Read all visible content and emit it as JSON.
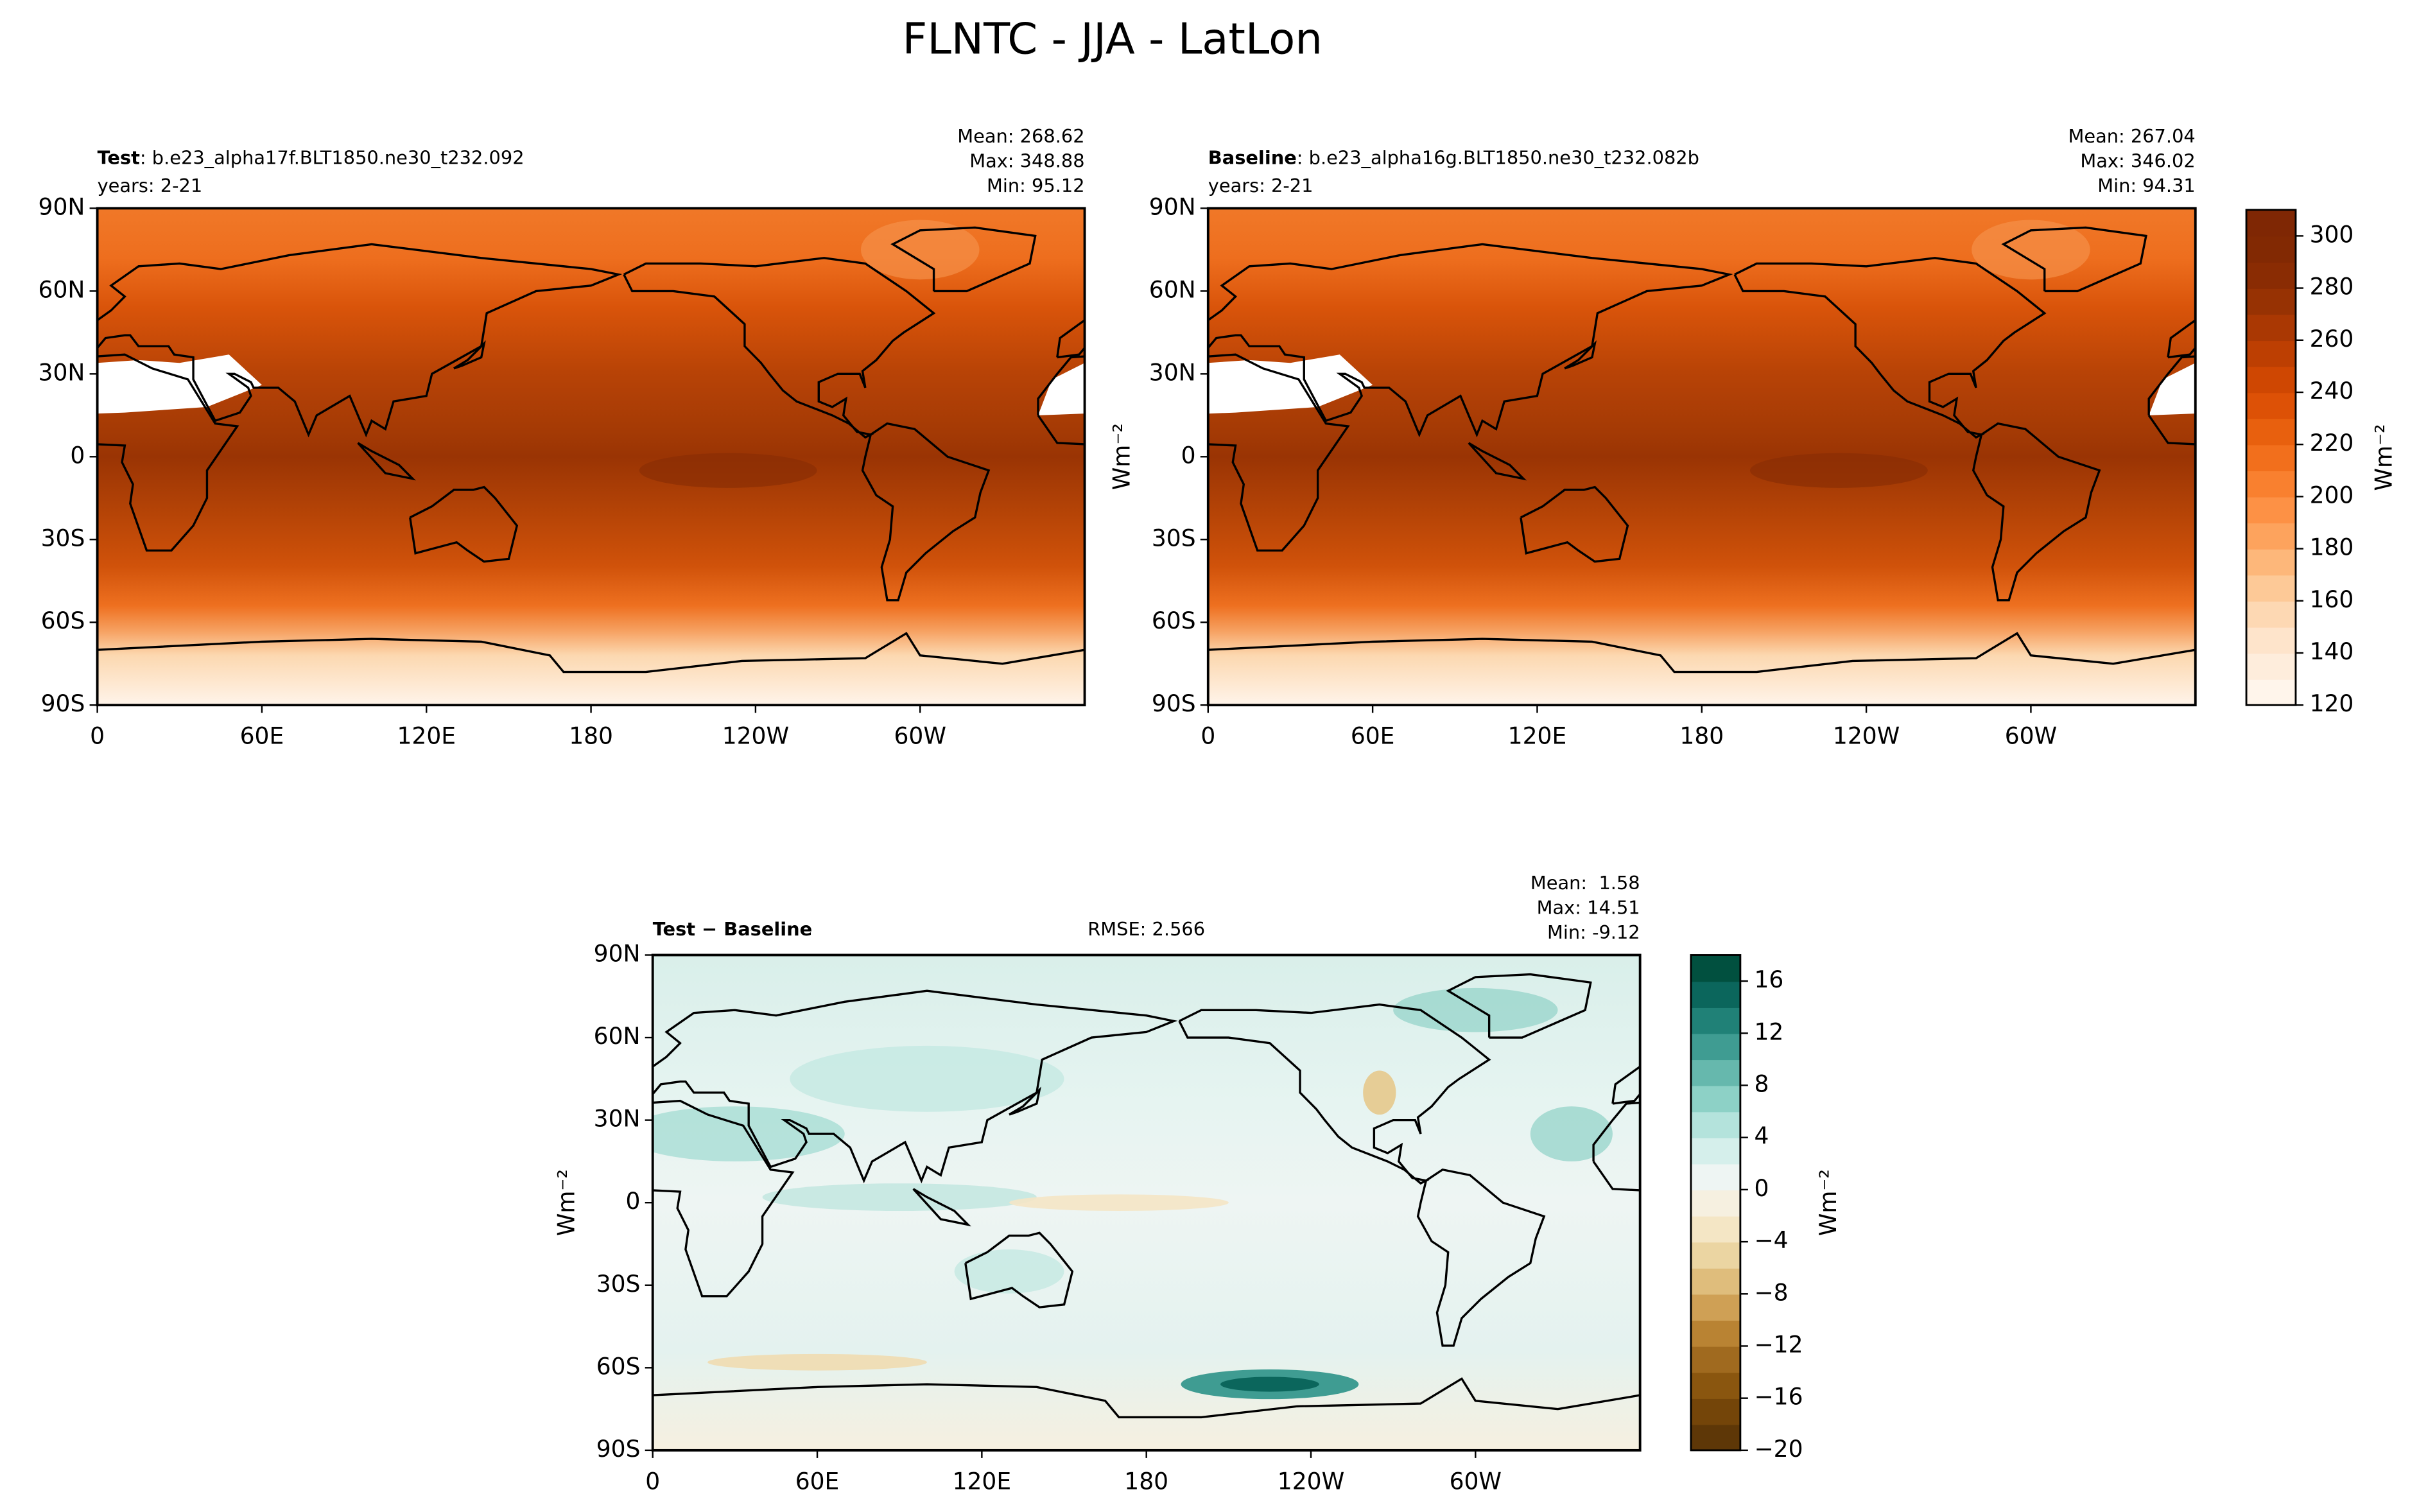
{
  "title": "FLNTC - JJA - LatLon",
  "chart_data": [
    {
      "type": "contourmap",
      "label_bold": "Test",
      "description": ": b.e23_alpha17f.BLT1850.ne30_t232.092",
      "subtitle": "years: 2-21",
      "stats": [
        "Mean: 268.62",
        "Max: 348.88",
        "Min: 95.12"
      ],
      "xlim": [
        0,
        360
      ],
      "ylim": [
        -90,
        90
      ],
      "xticks": [
        0,
        {
          "value": 60,
          "label": "60E"
        },
        {
          "value": 120,
          "label": "120E"
        },
        180,
        {
          "value": 240,
          "label": "120W"
        },
        {
          "value": 300,
          "label": "60W"
        }
      ],
      "yticks": [
        {
          "value": -90,
          "label": "90S"
        },
        {
          "value": -60,
          "label": "60S"
        },
        {
          "value": -30,
          "label": "30S"
        },
        0,
        {
          "value": 30,
          "label": "30N"
        },
        {
          "value": 60,
          "label": "60N"
        },
        {
          "value": 90,
          "label": "90N"
        }
      ]
    },
    {
      "type": "contourmap",
      "label_bold": "Baseline",
      "description": ": b.e23_alpha16g.BLT1850.ne30_t232.082b",
      "subtitle": "years: 2-21",
      "stats": [
        "Mean: 267.04",
        "Max: 346.02",
        "Min: 94.31"
      ],
      "ylabel": "Wm⁻²",
      "xlim": [
        0,
        360
      ],
      "ylim": [
        -90,
        90
      ],
      "xticks": [
        0,
        {
          "value": 60,
          "label": "60E"
        },
        {
          "value": 120,
          "label": "120E"
        },
        180,
        {
          "value": 240,
          "label": "120W"
        },
        {
          "value": 300,
          "label": "60W"
        }
      ],
      "yticks": [
        {
          "value": -90,
          "label": "90S"
        },
        {
          "value": -60,
          "label": "60S"
        },
        {
          "value": -30,
          "label": "30S"
        },
        0,
        {
          "value": 30,
          "label": "30N"
        },
        {
          "value": 60,
          "label": "60N"
        },
        {
          "value": 90,
          "label": "90N"
        }
      ],
      "colorbar": {
        "label": "Wm⁻²",
        "ylim": [
          120,
          310
        ],
        "yticks": [
          120,
          140,
          160,
          180,
          200,
          220,
          240,
          260,
          280,
          300
        ],
        "colors": [
          "#fff5eb",
          "#feeddc",
          "#fee4cb",
          "#fdd8b3",
          "#fdc997",
          "#fdb77a",
          "#fda35d",
          "#fd9145",
          "#f9802f",
          "#f26f1c",
          "#e8600e",
          "#dd5106",
          "#cf4702",
          "#bd3f02",
          "#aa3803",
          "#973203",
          "#8a2c03",
          "#822903",
          "#7f2704"
        ]
      }
    },
    {
      "type": "diffmap",
      "label_bold": "Test − Baseline",
      "rmse": "RMSE: 2.566",
      "stats": [
        "Mean:  1.58",
        "Max: 14.51",
        "Min: -9.12"
      ],
      "ylabel": "Wm⁻²",
      "xlim": [
        0,
        360
      ],
      "ylim": [
        -90,
        90
      ],
      "xticks": [
        0,
        {
          "value": 60,
          "label": "60E"
        },
        {
          "value": 120,
          "label": "120E"
        },
        180,
        {
          "value": 240,
          "label": "120W"
        },
        {
          "value": 300,
          "label": "60W"
        }
      ],
      "yticks": [
        {
          "value": -90,
          "label": "90S"
        },
        {
          "value": -60,
          "label": "60S"
        },
        {
          "value": -30,
          "label": "30S"
        },
        0,
        {
          "value": 30,
          "label": "30N"
        },
        {
          "value": 60,
          "label": "60N"
        },
        {
          "value": 90,
          "label": "90N"
        }
      ],
      "colorbar": {
        "label": "Wm⁻²",
        "ylim": [
          -20,
          18
        ],
        "yticks": [
          {
            "value": -20,
            "label": "−20"
          },
          {
            "value": -16,
            "label": "−16"
          },
          {
            "value": -12,
            "label": "−12"
          },
          {
            "value": -8,
            "label": "−8"
          },
          {
            "value": -4,
            "label": "−4"
          },
          0,
          4,
          8,
          12,
          16
        ],
        "colors": [
          "#5e3707",
          "#744509",
          "#8a560f",
          "#a06a1f",
          "#b98333",
          "#cfa055",
          "#dfbd7c",
          "#ebd5a2",
          "#f4e6c5",
          "#f6f0e0",
          "#eef5f3",
          "#d5efeb",
          "#b4e3dc",
          "#8dd1c6",
          "#66b8ad",
          "#3f9c92",
          "#208177",
          "#0b665c",
          "#01503f"
        ]
      }
    }
  ]
}
